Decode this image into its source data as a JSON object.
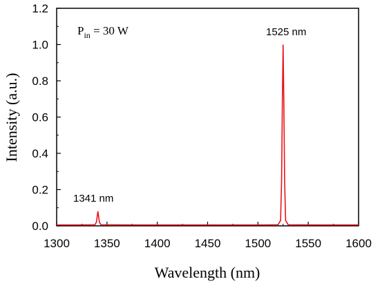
{
  "chart_data": {
    "type": "line",
    "xlabel": "Wavelength (nm)",
    "ylabel": "Intensity (a.u.)",
    "xlim": [
      1300,
      1600
    ],
    "ylim": [
      0.0,
      1.2
    ],
    "x_ticks": [
      "1300",
      "1350",
      "1400",
      "1450",
      "1500",
      "1550",
      "1600"
    ],
    "y_ticks": [
      "0.0",
      "0.2",
      "0.4",
      "0.6",
      "0.8",
      "1.0",
      "1.2"
    ],
    "grid": false,
    "series": [
      {
        "color": "#e8141b",
        "x": [
          1300,
          1320,
          1338,
          1339.5,
          1340.5,
          1341,
          1341.5,
          1342.5,
          1344,
          1380,
          1440,
          1500,
          1520,
          1522.5,
          1523.5,
          1524.3,
          1525,
          1525.7,
          1526.5,
          1527.5,
          1530,
          1560,
          1600
        ],
        "y": [
          0.005,
          0.005,
          0.006,
          0.02,
          0.06,
          0.08,
          0.06,
          0.02,
          0.006,
          0.005,
          0.005,
          0.005,
          0.006,
          0.03,
          0.25,
          0.7,
          1.0,
          0.7,
          0.25,
          0.03,
          0.006,
          0.005,
          0.005
        ]
      }
    ],
    "annotations": [
      {
        "text": "1341 nm"
      },
      {
        "text": "1525 nm"
      }
    ],
    "pin_label": {
      "main": "P",
      "sub": "in",
      "rest": " = 30 W"
    }
  }
}
